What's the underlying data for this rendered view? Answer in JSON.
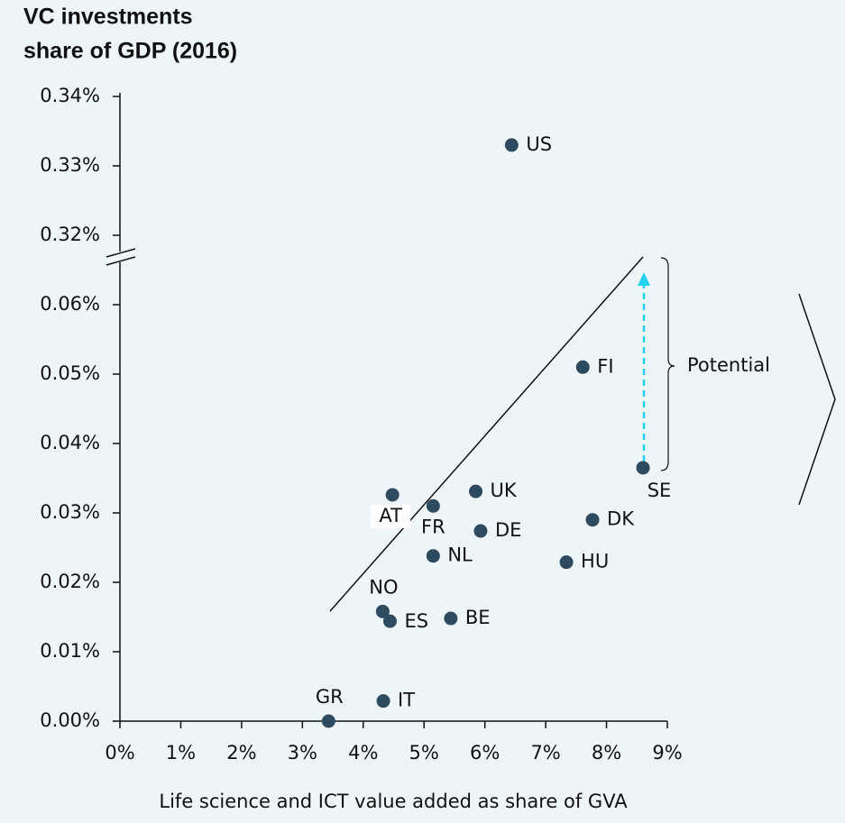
{
  "chart_data": {
    "type": "scatter",
    "title": [
      "VC investments",
      "share of GDP (2016)"
    ],
    "x_label": "Life science and ICT value added as share of GVA",
    "annotation": "Potential",
    "categories": [
      "US",
      "FI",
      "SE",
      "AT",
      "UK",
      "FR",
      "DE",
      "DK",
      "NL",
      "HU",
      "NO",
      "ES",
      "BE",
      "GR",
      "IT"
    ],
    "x": [
      6.44,
      7.61,
      8.6,
      4.48,
      5.85,
      5.15,
      5.93,
      7.77,
      5.15,
      7.34,
      4.32,
      4.44,
      5.44,
      3.43,
      4.33
    ],
    "values": [
      0.333,
      0.051,
      0.0365,
      0.0326,
      0.0331,
      0.031,
      0.0274,
      0.029,
      0.0238,
      0.0229,
      0.0158,
      0.0144,
      0.0148,
      0,
      0.0029
    ],
    "color": "#2d4a5e",
    "xlim": [
      0,
      9
    ],
    "xticks": [
      {
        "value": 0,
        "label": "0%"
      },
      {
        "value": 1,
        "label": "1%"
      },
      {
        "value": 2,
        "label": "2%"
      },
      {
        "value": 3,
        "label": "3%"
      },
      {
        "value": 4,
        "label": "4%"
      },
      {
        "value": 5,
        "label": "5%"
      },
      {
        "value": 6,
        "label": "6%"
      },
      {
        "value": 7,
        "label": "7%"
      },
      {
        "value": 8,
        "label": "8%"
      },
      {
        "value": 9,
        "label": "9%"
      }
    ],
    "ylim": [
      0,
      0.34
    ],
    "y_break": [
      0.067,
      0.317
    ],
    "yticks": [
      {
        "value": 0,
        "label": "0.00%"
      },
      {
        "value": 0.01,
        "label": "0.01%"
      },
      {
        "value": 0.02,
        "label": "0.02%"
      },
      {
        "value": 0.03,
        "label": "0.03%"
      },
      {
        "value": 0.04,
        "label": "0.04%"
      },
      {
        "value": 0.05,
        "label": "0.05%"
      },
      {
        "value": 0.06,
        "label": "0.06%"
      },
      {
        "value": 0.32,
        "label": "0.32%"
      },
      {
        "value": 0.33,
        "label": "0.33%"
      },
      {
        "value": 0.34,
        "label": "0.34%"
      }
    ]
  }
}
